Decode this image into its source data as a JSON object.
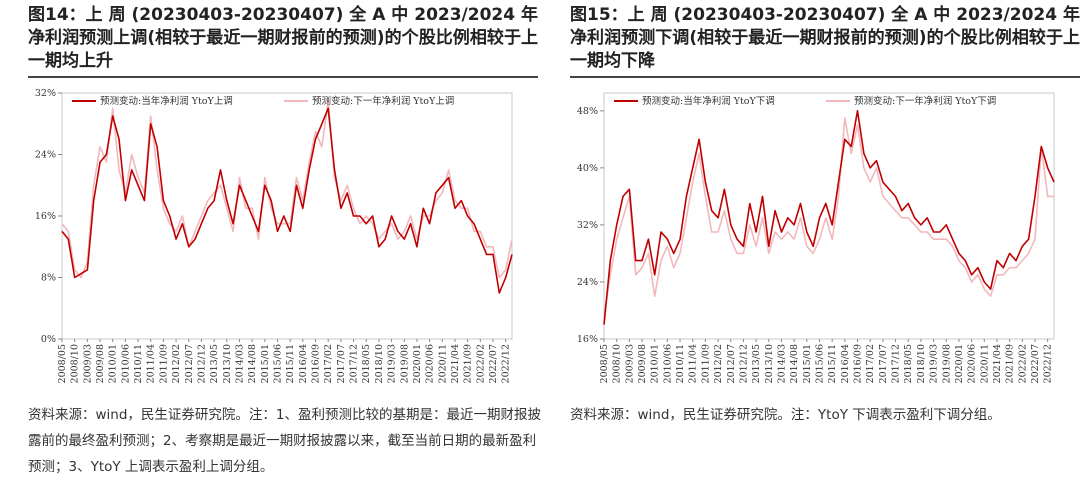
{
  "chart_data": [
    {
      "type": "line",
      "title": "图14：上 周 (20230403-20230407) 全 A 中 2023/2024 年净利润预测上调(相较于最近一期财报前的预测)的个股比例相较于上一期均上升",
      "categories": [
        "2008/05",
        null,
        "2008/10",
        null,
        "2009/03",
        null,
        "2009/08",
        null,
        "2010/01",
        null,
        "2010/06",
        null,
        "2010/11",
        null,
        "2011/04",
        null,
        "2011/09",
        null,
        "2012/02",
        null,
        "2012/07",
        null,
        "2012/12",
        null,
        "2013/05",
        null,
        "2013/10",
        null,
        "2014/03",
        null,
        "2014/08",
        null,
        "2015/01",
        null,
        "2015/06",
        null,
        "2015/11",
        null,
        "2016/04",
        null,
        "2016/09",
        null,
        "2017/02",
        null,
        "2017/07",
        null,
        "2017/12",
        null,
        "2018/05",
        null,
        "2018/10",
        null,
        "2019/03",
        null,
        "2019/08",
        null,
        "2020/01",
        null,
        "2020/06",
        null,
        "2020/11",
        null,
        "2021/04",
        null,
        "2021/09",
        null,
        "2022/02",
        null,
        "2022/07",
        null,
        "2022/12",
        null
      ],
      "series": [
        {
          "name": "预测变动:当年净利润 YtoY上调",
          "color": "#c00000",
          "values": [
            14,
            13,
            8,
            8.5,
            9,
            18,
            23,
            24,
            29,
            26,
            18,
            22,
            20,
            18,
            28,
            25,
            18,
            16,
            13,
            15,
            12,
            13,
            15,
            17,
            18,
            22,
            18,
            15,
            20,
            18,
            16,
            14,
            20,
            18,
            14,
            16,
            14,
            20,
            17,
            22,
            26,
            28,
            30,
            22,
            17,
            19,
            16,
            16,
            15,
            16,
            12,
            13,
            16,
            14,
            13,
            15,
            12,
            17,
            15,
            19,
            20,
            21,
            17,
            18,
            16,
            15,
            13,
            11,
            11,
            6,
            8,
            11
          ]
        },
        {
          "name": "预测变动:下一年净利润 YtoY上调",
          "color": "#f2b8bc",
          "values": [
            15,
            14,
            9,
            8,
            10,
            20,
            25,
            23,
            30,
            22,
            19,
            24,
            21,
            19,
            29,
            22,
            17,
            15,
            14,
            16,
            12,
            14,
            16,
            18,
            19,
            20,
            17,
            14,
            21,
            17,
            17,
            13,
            21,
            17,
            15,
            15,
            15,
            21,
            18,
            23,
            27,
            25,
            31,
            21,
            18,
            20,
            17,
            15,
            16,
            15,
            13,
            14,
            15,
            13,
            14,
            16,
            13,
            16,
            16,
            18,
            19,
            22,
            18,
            17,
            17,
            14,
            14,
            12,
            12,
            8,
            9,
            13
          ]
        }
      ],
      "ylim": [
        0,
        32
      ],
      "yticks": [
        {
          "value": 0,
          "label": "0%"
        },
        {
          "value": 8,
          "label": "8%"
        },
        {
          "value": 16,
          "label": "16%"
        },
        {
          "value": 24,
          "label": "24%"
        },
        {
          "value": 32,
          "label": "32%"
        }
      ],
      "note": "资料来源：wind，民生证券研究院。注：1、盈利预测比较的基期是：最近一期财报披露前的最终盈利预测；2、考察期是最近一期财报披露以来，截至当前日期的最新盈利预测；3、YtoY 上调表示盈利上调分组。"
    },
    {
      "type": "line",
      "title": "图15：上 周 (20230403-20230407) 全 A 中 2023/2024 年净利润预测下调(相较于最近一期财报前的预测)的个股比例相较于上一期均下降",
      "categories": [
        "2008/05",
        null,
        "2008/10",
        null,
        "2009/03",
        null,
        "2009/08",
        null,
        "2010/01",
        null,
        "2010/06",
        null,
        "2010/11",
        null,
        "2011/04",
        null,
        "2011/09",
        null,
        "2012/02",
        null,
        "2012/07",
        null,
        "2012/12",
        null,
        "2013/05",
        null,
        "2013/10",
        null,
        "2014/03",
        null,
        "2014/08",
        null,
        "2015/01",
        null,
        "2015/06",
        null,
        "2015/11",
        null,
        "2016/04",
        null,
        "2016/09",
        null,
        "2017/02",
        null,
        "2017/07",
        null,
        "2017/12",
        null,
        "2018/05",
        null,
        "2018/10",
        null,
        "2019/03",
        null,
        "2019/08",
        null,
        "2020/01",
        null,
        "2020/06",
        null,
        "2020/11",
        null,
        "2021/04",
        null,
        "2021/09",
        null,
        "2022/02",
        null,
        "2022/07",
        null,
        "2022/12",
        null
      ],
      "series": [
        {
          "name": "预测变动:当年净利润 YtoY下调",
          "color": "#c00000",
          "values": [
            18,
            27,
            32,
            36,
            37,
            27,
            27,
            30,
            25,
            31,
            30,
            28,
            30,
            36,
            40,
            44,
            38,
            34,
            33,
            37,
            32,
            30,
            29,
            35,
            31,
            36,
            29,
            34,
            31,
            33,
            32,
            35,
            31,
            29,
            33,
            35,
            32,
            38,
            44,
            43,
            48,
            42,
            40,
            41,
            38,
            37,
            36,
            34,
            35,
            33,
            32,
            33,
            31,
            31,
            32,
            30,
            28,
            27,
            25,
            26,
            24,
            23,
            27,
            26,
            28,
            27,
            29,
            30,
            36,
            43,
            40,
            38
          ]
        },
        {
          "name": "预测变动:下一年净利润 YtoY下调",
          "color": "#f2b8bc",
          "values": [
            19,
            25,
            30,
            33,
            36,
            25,
            26,
            28,
            22,
            27,
            29,
            26,
            28,
            33,
            38,
            42,
            36,
            31,
            31,
            34,
            30,
            28,
            28,
            32,
            29,
            33,
            28,
            31,
            30,
            31,
            30,
            33,
            29,
            28,
            30,
            33,
            30,
            36,
            47,
            42,
            46,
            40,
            38,
            40,
            36,
            35,
            34,
            33,
            33,
            32,
            31,
            31,
            30,
            30,
            30,
            29,
            27,
            26,
            24,
            25,
            23,
            22,
            25,
            25,
            26,
            26,
            27,
            28,
            30,
            43,
            36,
            36
          ]
        }
      ],
      "ylim": [
        16,
        50.5
      ],
      "yticks": [
        {
          "value": 16,
          "label": "16%"
        },
        {
          "value": 24,
          "label": "24%"
        },
        {
          "value": 32,
          "label": "32%"
        },
        {
          "value": 40,
          "label": "40%"
        },
        {
          "value": 48,
          "label": "48%"
        }
      ],
      "note": "资料来源：wind，民生证券研究院。注：YtoY 下调表示盈利下调分组。"
    }
  ]
}
